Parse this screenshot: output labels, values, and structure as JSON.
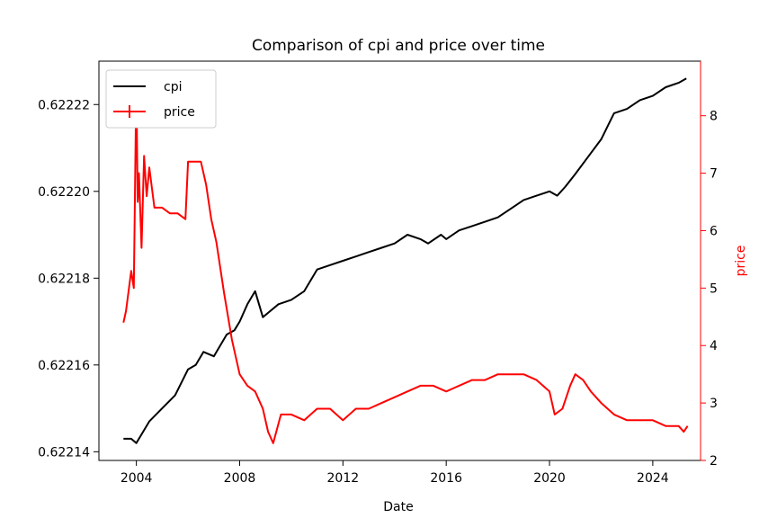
{
  "chart_data": {
    "type": "line",
    "title": "Comparison of cpi and price over time",
    "xlabel": "Date",
    "ylabel_left": "",
    "ylabel_right": "price",
    "xlim": [
      2002.55,
      2025.85
    ],
    "ylim_left": [
      0.622138,
      0.62223
    ],
    "ylim_right": [
      2.0,
      8.95
    ],
    "x_ticks": [
      2004,
      2008,
      2012,
      2016,
      2020,
      2024
    ],
    "x_tick_labels": [
      "2004",
      "2008",
      "2012",
      "2016",
      "2020",
      "2024"
    ],
    "y_left_ticks": [
      0.62214,
      0.62216,
      0.62218,
      0.6222,
      0.62222
    ],
    "y_left_tick_labels": [
      "0.62214",
      "0.62216",
      "0.62218",
      "0.62220",
      "0.62222"
    ],
    "y_right_ticks": [
      2,
      3,
      4,
      5,
      6,
      7,
      8
    ],
    "y_right_tick_labels": [
      "2",
      "3",
      "4",
      "5",
      "6",
      "7",
      "8"
    ],
    "legend_position": "top-left",
    "grid": false,
    "series": [
      {
        "name": "cpi",
        "axis": "left",
        "color": "#000000",
        "x": [
          2003.5,
          2003.8,
          2004.0,
          2004.2,
          2004.5,
          2005.0,
          2005.5,
          2006.0,
          2006.3,
          2006.6,
          2007.0,
          2007.5,
          2007.8,
          2008.0,
          2008.3,
          2008.6,
          2008.9,
          2009.1,
          2009.5,
          2010.0,
          2010.5,
          2011.0,
          2011.5,
          2012.0,
          2012.5,
          2013.0,
          2013.5,
          2014.0,
          2014.5,
          2015.0,
          2015.3,
          2015.8,
          2016.0,
          2016.5,
          2017.0,
          2017.5,
          2018.0,
          2018.5,
          2019.0,
          2019.5,
          2020.0,
          2020.3,
          2020.6,
          2021.0,
          2021.5,
          2022.0,
          2022.5,
          2023.0,
          2023.5,
          2024.0,
          2024.5,
          2025.0,
          2025.3
        ],
        "values": [
          0.622143,
          0.622143,
          0.622142,
          0.622144,
          0.622147,
          0.62215,
          0.622153,
          0.622159,
          0.62216,
          0.622163,
          0.622162,
          0.622167,
          0.622168,
          0.62217,
          0.622174,
          0.622177,
          0.622171,
          0.622172,
          0.622174,
          0.622175,
          0.622177,
          0.622182,
          0.622183,
          0.622184,
          0.622185,
          0.622186,
          0.622187,
          0.622188,
          0.62219,
          0.622189,
          0.622188,
          0.62219,
          0.622189,
          0.622191,
          0.622192,
          0.622193,
          0.622194,
          0.622196,
          0.622198,
          0.622199,
          0.6222,
          0.622199,
          0.622201,
          0.622204,
          0.622208,
          0.622212,
          0.622218,
          0.622219,
          0.622221,
          0.622222,
          0.622224,
          0.622225,
          0.622226
        ]
      },
      {
        "name": "price",
        "axis": "right",
        "color": "#ff0000",
        "x": [
          2003.5,
          2003.6,
          2003.8,
          2003.9,
          2004.0,
          2004.05,
          2004.1,
          2004.2,
          2004.3,
          2004.4,
          2004.5,
          2004.7,
          2005.0,
          2005.3,
          2005.6,
          2005.9,
          2006.0,
          2006.2,
          2006.5,
          2006.7,
          2006.9,
          2007.1,
          2007.4,
          2007.7,
          2008.0,
          2008.3,
          2008.6,
          2008.9,
          2009.1,
          2009.3,
          2009.6,
          2010.0,
          2010.5,
          2011.0,
          2011.5,
          2012.0,
          2012.5,
          2013.0,
          2013.5,
          2014.0,
          2014.5,
          2015.0,
          2015.5,
          2016.0,
          2016.5,
          2017.0,
          2017.5,
          2018.0,
          2018.5,
          2019.0,
          2019.5,
          2020.0,
          2020.2,
          2020.5,
          2020.8,
          2021.0,
          2021.3,
          2021.6,
          2022.0,
          2022.5,
          2023.0,
          2023.5,
          2024.0,
          2024.5,
          2025.0,
          2025.2,
          2025.35
        ],
        "values": [
          4.4,
          4.6,
          5.3,
          5.0,
          8.6,
          6.5,
          7.0,
          5.7,
          7.3,
          6.6,
          7.1,
          6.4,
          6.4,
          6.3,
          6.3,
          6.2,
          7.2,
          7.2,
          7.2,
          6.8,
          6.2,
          5.8,
          4.9,
          4.1,
          3.5,
          3.3,
          3.2,
          2.9,
          2.5,
          2.3,
          2.8,
          2.8,
          2.7,
          2.9,
          2.9,
          2.7,
          2.9,
          2.9,
          3.0,
          3.1,
          3.2,
          3.3,
          3.3,
          3.2,
          3.3,
          3.4,
          3.4,
          3.5,
          3.5,
          3.5,
          3.4,
          3.2,
          2.8,
          2.9,
          3.3,
          3.5,
          3.4,
          3.2,
          3.0,
          2.8,
          2.7,
          2.7,
          2.7,
          2.6,
          2.6,
          2.5,
          2.6
        ]
      }
    ]
  }
}
